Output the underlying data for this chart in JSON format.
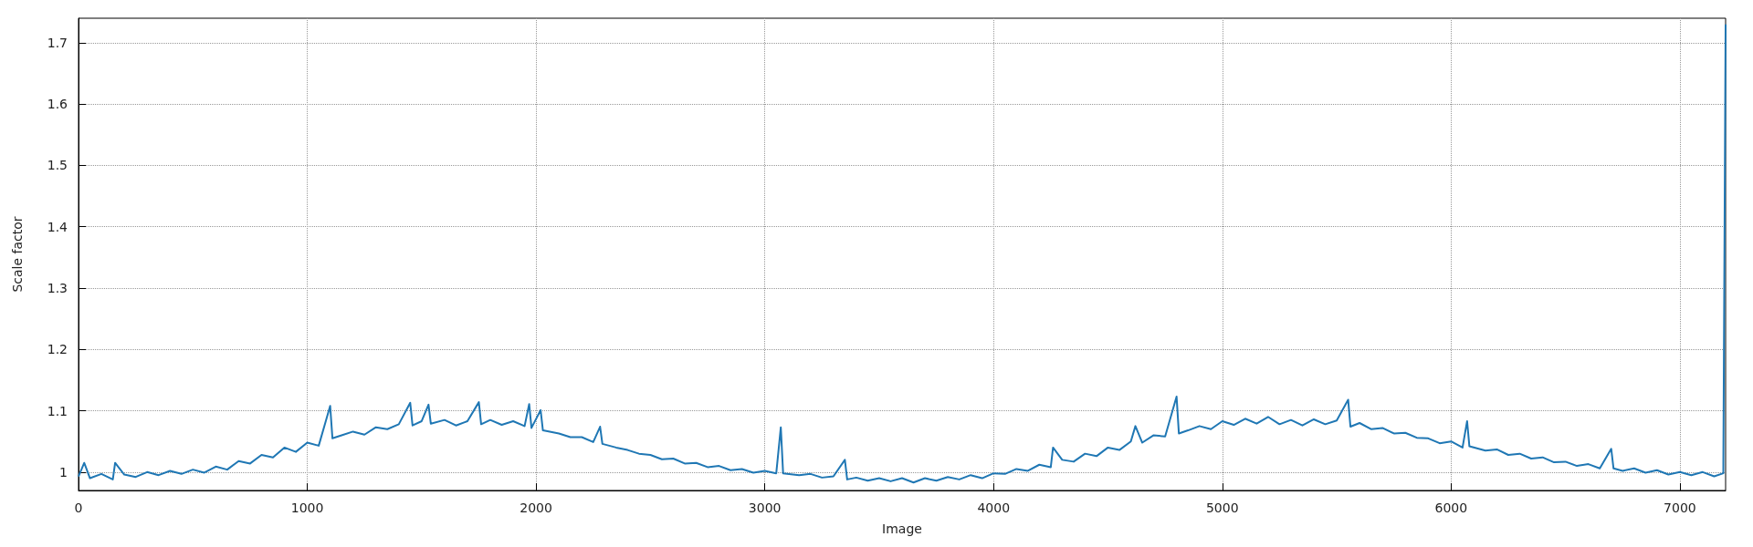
{
  "chart_data": {
    "type": "line",
    "xlabel": "Image",
    "ylabel": "Scale factor",
    "xlim": [
      0,
      7200
    ],
    "ylim": [
      0.97,
      1.74
    ],
    "xticks": [
      0,
      1000,
      2000,
      3000,
      4000,
      5000,
      6000,
      7000
    ],
    "yticks": [
      1,
      1.1,
      1.2,
      1.3,
      1.4,
      1.5,
      1.6,
      1.7
    ],
    "grid": true,
    "marker": "none",
    "line_style": "solid",
    "series": [
      {
        "color": "#1f77b4",
        "x": [
          0,
          25,
          50,
          100,
          150,
          160,
          200,
          250,
          300,
          350,
          400,
          450,
          500,
          550,
          600,
          650,
          700,
          750,
          800,
          850,
          900,
          950,
          1000,
          1050,
          1100,
          1110,
          1150,
          1200,
          1250,
          1300,
          1350,
          1400,
          1450,
          1460,
          1500,
          1530,
          1540,
          1600,
          1650,
          1700,
          1750,
          1760,
          1800,
          1850,
          1900,
          1950,
          1970,
          1980,
          2020,
          2030,
          2100,
          2150,
          2200,
          2250,
          2280,
          2290,
          2350,
          2400,
          2450,
          2500,
          2550,
          2600,
          2650,
          2700,
          2750,
          2800,
          2850,
          2900,
          2950,
          3000,
          3050,
          3070,
          3080,
          3150,
          3200,
          3250,
          3300,
          3350,
          3360,
          3400,
          3450,
          3500,
          3550,
          3600,
          3650,
          3700,
          3750,
          3800,
          3850,
          3900,
          3950,
          4000,
          4050,
          4100,
          4150,
          4200,
          4250,
          4260,
          4300,
          4350,
          4400,
          4450,
          4500,
          4550,
          4600,
          4620,
          4650,
          4700,
          4750,
          4800,
          4810,
          4850,
          4900,
          4950,
          5000,
          5050,
          5100,
          5150,
          5200,
          5250,
          5300,
          5350,
          5400,
          5450,
          5500,
          5550,
          5560,
          5600,
          5650,
          5700,
          5750,
          5800,
          5850,
          5900,
          5950,
          6000,
          6050,
          6070,
          6080,
          6150,
          6200,
          6250,
          6300,
          6350,
          6400,
          6450,
          6500,
          6550,
          6600,
          6650,
          6700,
          6710,
          6750,
          6800,
          6850,
          6900,
          6950,
          7000,
          7050,
          7100,
          7150,
          7190,
          7200
        ],
        "values": [
          0.993,
          1.015,
          0.99,
          0.997,
          0.988,
          1.015,
          0.996,
          0.992,
          1.0,
          0.995,
          1.002,
          0.997,
          1.004,
          0.999,
          1.009,
          1.004,
          1.018,
          1.014,
          1.028,
          1.024,
          1.04,
          1.033,
          1.048,
          1.043,
          1.108,
          1.055,
          1.06,
          1.066,
          1.061,
          1.073,
          1.07,
          1.078,
          1.113,
          1.076,
          1.083,
          1.11,
          1.079,
          1.085,
          1.076,
          1.083,
          1.114,
          1.078,
          1.085,
          1.077,
          1.083,
          1.075,
          1.111,
          1.072,
          1.101,
          1.068,
          1.063,
          1.057,
          1.057,
          1.049,
          1.074,
          1.046,
          1.04,
          1.036,
          1.03,
          1.028,
          1.021,
          1.022,
          1.014,
          1.015,
          1.008,
          1.01,
          1.003,
          1.005,
          0.999,
          1.002,
          0.998,
          1.073,
          0.998,
          0.995,
          0.997,
          0.991,
          0.993,
          1.02,
          0.988,
          0.991,
          0.986,
          0.99,
          0.985,
          0.99,
          0.983,
          0.99,
          0.986,
          0.992,
          0.988,
          0.995,
          0.99,
          0.998,
          0.997,
          1.005,
          1.002,
          1.012,
          1.008,
          1.04,
          1.02,
          1.017,
          1.03,
          1.026,
          1.04,
          1.036,
          1.05,
          1.075,
          1.048,
          1.06,
          1.058,
          1.123,
          1.063,
          1.068,
          1.075,
          1.07,
          1.083,
          1.077,
          1.087,
          1.079,
          1.09,
          1.078,
          1.085,
          1.076,
          1.086,
          1.078,
          1.084,
          1.118,
          1.074,
          1.08,
          1.07,
          1.072,
          1.063,
          1.064,
          1.056,
          1.055,
          1.047,
          1.05,
          1.04,
          1.083,
          1.042,
          1.035,
          1.037,
          1.028,
          1.03,
          1.022,
          1.024,
          1.016,
          1.017,
          1.01,
          1.013,
          1.006,
          1.038,
          1.006,
          1.002,
          1.006,
          0.999,
          1.003,
          0.996,
          1.0,
          0.995,
          1.0,
          0.993,
          0.998,
          1.73
        ]
      }
    ]
  }
}
